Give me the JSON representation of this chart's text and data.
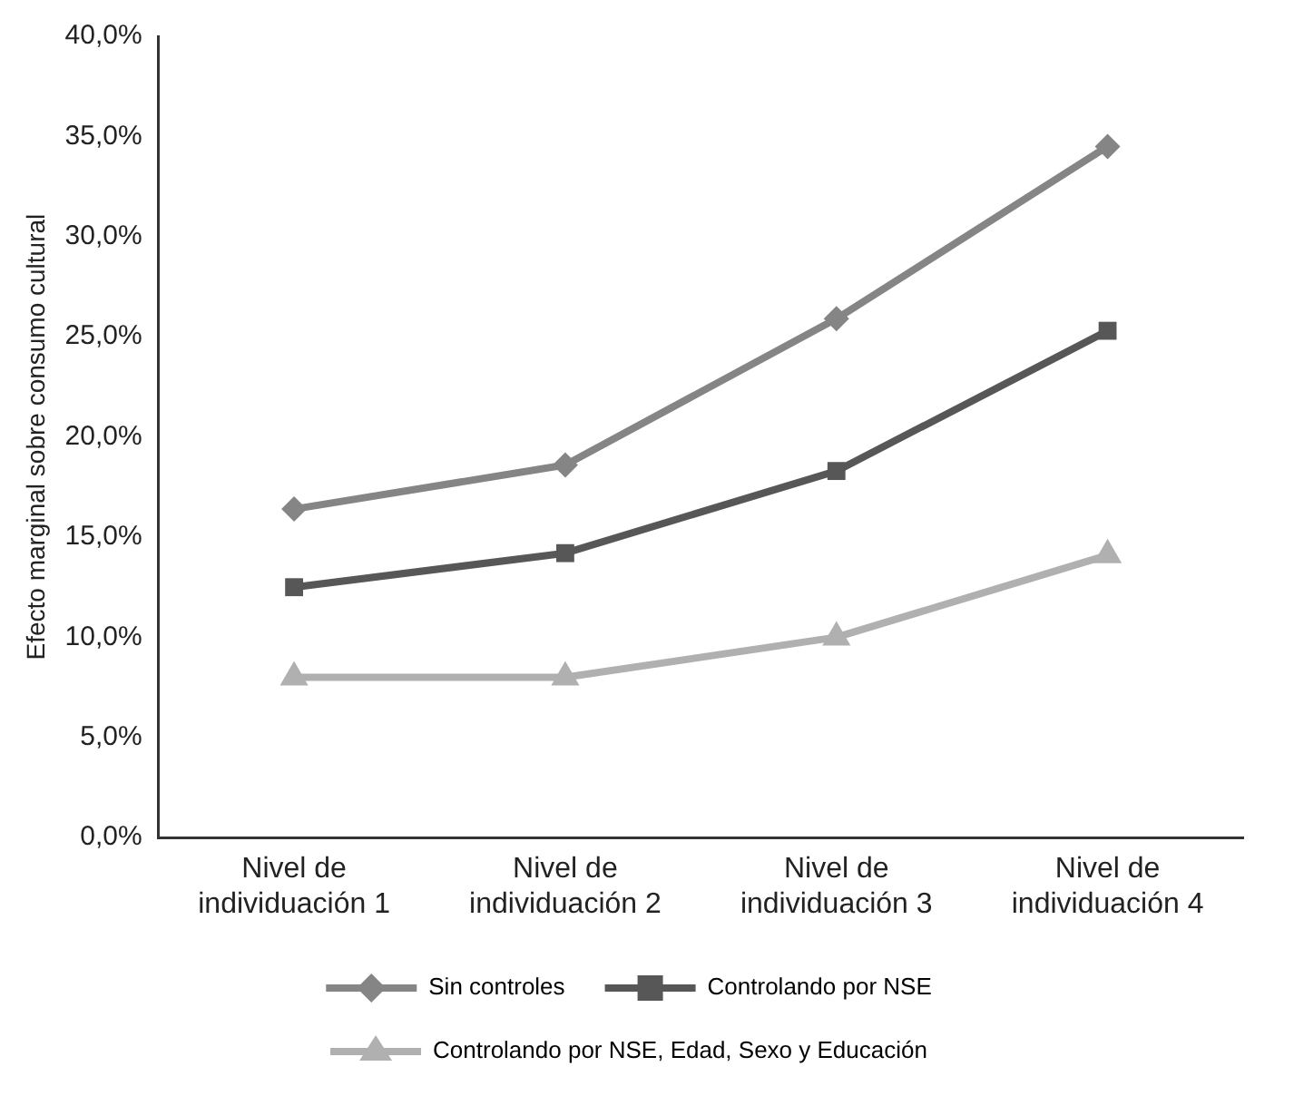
{
  "chart_data": {
    "type": "line",
    "ylabel": "Efecto marginal sobre consumo cultural",
    "categories": [
      "Nivel de\nindividuación 1",
      "Nivel de\nindividuación 2",
      "Nivel de\nindividuación 3",
      "Nivel de\nindividuación 4"
    ],
    "series": [
      {
        "name": "Sin controles",
        "color": "#858585",
        "marker": "diamond",
        "values": [
          16.4,
          18.6,
          25.9,
          34.5
        ]
      },
      {
        "name": "Controlando por NSE",
        "color": "#575757",
        "marker": "square",
        "values": [
          12.5,
          14.2,
          18.3,
          25.3
        ]
      },
      {
        "name": "Controlando por NSE, Edad, Sexo y Educación",
        "color": "#b0b0b0",
        "marker": "triangle",
        "values": [
          8.0,
          8.0,
          10.0,
          14.1
        ]
      }
    ],
    "ylim": [
      0,
      40
    ],
    "yticks": [
      {
        "value": 0,
        "label": "0,0%"
      },
      {
        "value": 5,
        "label": "5,0%"
      },
      {
        "value": 10,
        "label": "10,0%"
      },
      {
        "value": 15,
        "label": "15,0%"
      },
      {
        "value": 20,
        "label": "20,0%"
      },
      {
        "value": 25,
        "label": "25,0%"
      },
      {
        "value": 30,
        "label": "30,0%"
      },
      {
        "value": 35,
        "label": "35,0%"
      },
      {
        "value": 40,
        "label": "40,0%"
      }
    ],
    "grid": false,
    "legend": "bottom",
    "line_style": "solid"
  }
}
